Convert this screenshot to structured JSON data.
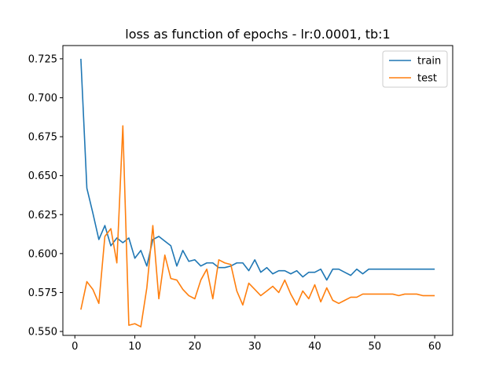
{
  "chart_data": {
    "type": "line",
    "title": "loss as function of epochs - lr:0.0001, tb:1",
    "xlabel": "",
    "ylabel": "",
    "xlim": [
      -2.0,
      63.0
    ],
    "ylim": [
      0.5475,
      0.7335
    ],
    "x_ticks": [
      0,
      10,
      20,
      30,
      40,
      50,
      60
    ],
    "x_tick_labels": [
      "0",
      "10",
      "20",
      "30",
      "40",
      "50",
      "60"
    ],
    "y_ticks": [
      0.55,
      0.575,
      0.6,
      0.625,
      0.65,
      0.675,
      0.7,
      0.725
    ],
    "y_tick_labels": [
      "0.550",
      "0.575",
      "0.600",
      "0.625",
      "0.650",
      "0.675",
      "0.700",
      "0.725"
    ],
    "grid": false,
    "legend_position": "top-right",
    "x": [
      1,
      2,
      3,
      4,
      5,
      6,
      7,
      8,
      9,
      10,
      11,
      12,
      13,
      14,
      15,
      16,
      17,
      18,
      19,
      20,
      21,
      22,
      23,
      24,
      25,
      26,
      27,
      28,
      29,
      30,
      31,
      32,
      33,
      34,
      35,
      36,
      37,
      38,
      39,
      40,
      41,
      42,
      43,
      44,
      45,
      46,
      47,
      48,
      49,
      50,
      51,
      52,
      53,
      54,
      55,
      56,
      57,
      58,
      59,
      60
    ],
    "series": [
      {
        "name": "train",
        "color": "#1f77b4",
        "values": [
          0.725,
          0.642,
          0.626,
          0.609,
          0.618,
          0.605,
          0.61,
          0.607,
          0.61,
          0.597,
          0.602,
          0.592,
          0.609,
          0.611,
          0.608,
          0.605,
          0.592,
          0.602,
          0.595,
          0.596,
          0.592,
          0.594,
          0.594,
          0.591,
          0.591,
          0.592,
          0.594,
          0.594,
          0.589,
          0.596,
          0.588,
          0.591,
          0.587,
          0.589,
          0.589,
          0.587,
          0.589,
          0.585,
          0.588,
          0.588,
          0.59,
          0.583,
          0.59,
          0.59,
          0.588,
          0.586,
          0.59,
          0.587,
          0.59,
          0.59,
          0.59,
          0.59,
          0.59,
          0.59,
          0.59,
          0.59,
          0.59,
          0.59,
          0.59,
          0.59
        ]
      },
      {
        "name": "test",
        "color": "#ff7f0e",
        "values": [
          0.564,
          0.582,
          0.577,
          0.568,
          0.611,
          0.616,
          0.594,
          0.682,
          0.554,
          0.555,
          0.553,
          0.578,
          0.618,
          0.571,
          0.599,
          0.584,
          0.583,
          0.577,
          0.573,
          0.571,
          0.583,
          0.59,
          0.571,
          0.596,
          0.594,
          0.593,
          0.576,
          0.567,
          0.581,
          0.577,
          0.573,
          0.576,
          0.579,
          0.575,
          0.583,
          0.574,
          0.567,
          0.576,
          0.571,
          0.58,
          0.569,
          0.578,
          0.57,
          0.568,
          0.57,
          0.572,
          0.572,
          0.574,
          0.574,
          0.574,
          0.574,
          0.574,
          0.574,
          0.573,
          0.574,
          0.574,
          0.574,
          0.573,
          0.573,
          0.573
        ]
      }
    ]
  }
}
